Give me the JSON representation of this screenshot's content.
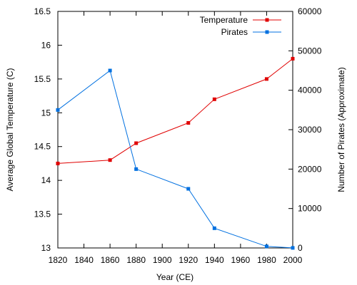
{
  "chart_data": {
    "type": "line",
    "title": "",
    "xlabel": "Year (CE)",
    "ylabel_left": "Average Global Temperature (C)",
    "ylabel_right": "Number of Pirates (Approximate)",
    "xlim": [
      1820,
      2000
    ],
    "ylim_left": [
      13,
      16.5
    ],
    "ylim_right": [
      0,
      60000
    ],
    "x_ticks": [
      1820,
      1840,
      1860,
      1880,
      1900,
      1920,
      1940,
      1960,
      1980,
      2000
    ],
    "y_left_ticks": [
      13,
      13.5,
      14,
      14.5,
      15,
      15.5,
      16,
      16.5
    ],
    "y_right_ticks": [
      0,
      10000,
      20000,
      30000,
      40000,
      50000,
      60000
    ],
    "grid": false,
    "legend_position": "top-right",
    "series": [
      {
        "name": "Temperature",
        "axis": "left",
        "color": "#e00000",
        "x": [
          1820,
          1860,
          1880,
          1920,
          1940,
          1980,
          2000
        ],
        "y": [
          14.25,
          14.3,
          14.55,
          14.85,
          15.2,
          15.5,
          15.8
        ]
      },
      {
        "name": "Pirates",
        "axis": "right",
        "color": "#0070e0",
        "x": [
          1820,
          1860,
          1880,
          1920,
          1940,
          1980,
          2000
        ],
        "y": [
          35000,
          45000,
          20000,
          15000,
          5000,
          400,
          17
        ]
      }
    ]
  }
}
